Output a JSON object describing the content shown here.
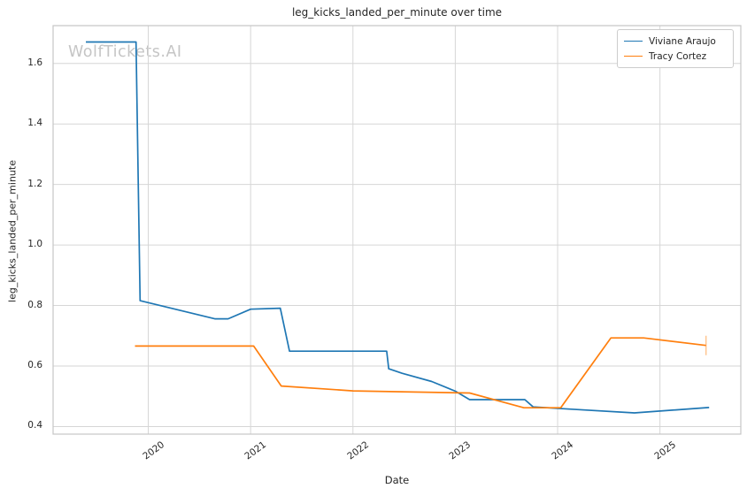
{
  "chart": {
    "title": "leg_kicks_landed_per_minute over time",
    "xlabel": "Date",
    "ylabel": "leg_kicks_landed_per_minute",
    "watermark": "WolfTickets.AI"
  },
  "chart_data": {
    "type": "line",
    "title": "leg_kicks_landed_per_minute over time",
    "xlabel": "Date",
    "ylabel": "leg_kicks_landed_per_minute",
    "grid": true,
    "legend_position": "upper right",
    "colors": {
      "grid": "#d6d6d6",
      "spine": "#c6c6c6",
      "text": "#262626",
      "watermark": "#c5c5c5"
    },
    "x_axis": {
      "min": 2019.07,
      "max": 2025.79,
      "ticks": [
        2020,
        2021,
        2022,
        2023,
        2024,
        2025
      ],
      "tick_labels": [
        "2020",
        "2021",
        "2022",
        "2023",
        "2024",
        "2025"
      ]
    },
    "y_axis": {
      "min": 0.375,
      "max": 1.725,
      "ticks": [
        0.4,
        0.6,
        0.8,
        1.0,
        1.2,
        1.4,
        1.6
      ],
      "tick_labels": [
        "0.4",
        "0.6",
        "0.8",
        "1.0",
        "1.2",
        "1.4",
        "1.6"
      ]
    },
    "series": [
      {
        "name": "Viviane Araujo",
        "color": "#1f77b4",
        "end_cap": false,
        "points": [
          [
            2019.39,
            1.671
          ],
          [
            2019.88,
            1.671
          ],
          [
            2019.92,
            0.816
          ],
          [
            2020.65,
            0.756
          ],
          [
            2020.78,
            0.756
          ],
          [
            2021.0,
            0.788
          ],
          [
            2021.29,
            0.791
          ],
          [
            2021.38,
            0.649
          ],
          [
            2022.33,
            0.649
          ],
          [
            2022.35,
            0.591
          ],
          [
            2022.48,
            0.576
          ],
          [
            2022.77,
            0.549
          ],
          [
            2023.0,
            0.517
          ],
          [
            2023.14,
            0.489
          ],
          [
            2023.68,
            0.489
          ],
          [
            2023.76,
            0.465
          ],
          [
            2024.06,
            0.459
          ],
          [
            2024.75,
            0.445
          ],
          [
            2025.48,
            0.463
          ]
        ]
      },
      {
        "name": "Tracy Cortez",
        "color": "#ff7f0e",
        "end_cap": true,
        "points": [
          [
            2019.87,
            0.666
          ],
          [
            2021.03,
            0.666
          ],
          [
            2021.3,
            0.534
          ],
          [
            2022.0,
            0.518
          ],
          [
            2023.14,
            0.511
          ],
          [
            2023.67,
            0.462
          ],
          [
            2024.03,
            0.462
          ],
          [
            2024.52,
            0.693
          ],
          [
            2024.84,
            0.693
          ],
          [
            2025.45,
            0.668
          ]
        ]
      }
    ]
  }
}
